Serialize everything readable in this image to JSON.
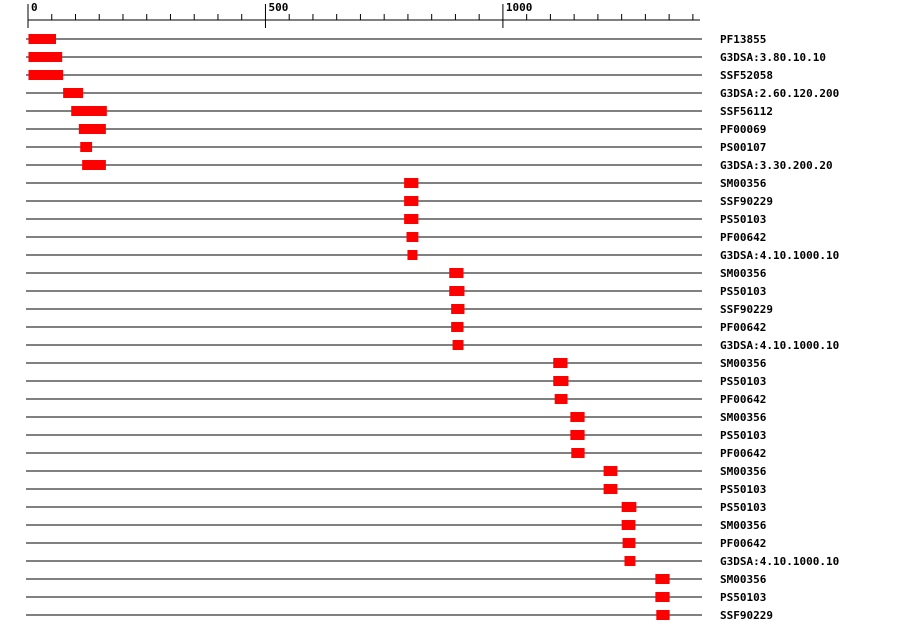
{
  "chart_data": {
    "type": "domains",
    "xlim": [
      0,
      1415
    ],
    "xticks": [
      0,
      500,
      1000
    ],
    "minor_xticks": [
      50,
      100,
      150,
      200,
      250,
      300,
      350,
      400,
      450,
      550,
      600,
      650,
      700,
      750,
      800,
      850,
      900,
      950,
      1050,
      1100,
      1150,
      1200,
      1250,
      1300,
      1350,
      1400
    ],
    "color": "#ff0000",
    "rows": [
      {
        "label": "PF13855",
        "start": 1,
        "end": 59
      },
      {
        "label": "G3DSA:3.80.10.10",
        "start": 1,
        "end": 72
      },
      {
        "label": "SSF52058",
        "start": 1,
        "end": 74
      },
      {
        "label": "G3DSA:2.60.120.200",
        "start": 74,
        "end": 116
      },
      {
        "label": "SSF56112",
        "start": 91,
        "end": 166
      },
      {
        "label": "PF00069",
        "start": 107,
        "end": 164
      },
      {
        "label": "PS00107",
        "start": 110,
        "end": 135
      },
      {
        "label": "G3DSA:3.30.200.20",
        "start": 114,
        "end": 164
      },
      {
        "label": "SM00356",
        "start": 792,
        "end": 822
      },
      {
        "label": "SSF90229",
        "start": 792,
        "end": 822
      },
      {
        "label": "PS50103",
        "start": 792,
        "end": 822
      },
      {
        "label": "PF00642",
        "start": 797,
        "end": 822
      },
      {
        "label": "G3DSA:4.10.1000.10",
        "start": 799,
        "end": 820
      },
      {
        "label": "SM00356",
        "start": 887,
        "end": 917
      },
      {
        "label": "PS50103",
        "start": 887,
        "end": 919
      },
      {
        "label": "SSF90229",
        "start": 891,
        "end": 919
      },
      {
        "label": "PF00642",
        "start": 891,
        "end": 917
      },
      {
        "label": "G3DSA:4.10.1000.10",
        "start": 894,
        "end": 917
      },
      {
        "label": "SM00356",
        "start": 1106,
        "end": 1136
      },
      {
        "label": "PS50103",
        "start": 1106,
        "end": 1138
      },
      {
        "label": "PF00642",
        "start": 1109,
        "end": 1136
      },
      {
        "label": "SM00356",
        "start": 1142,
        "end": 1172
      },
      {
        "label": "PS50103",
        "start": 1142,
        "end": 1172
      },
      {
        "label": "PF00642",
        "start": 1144,
        "end": 1172
      },
      {
        "label": "SM00356",
        "start": 1212,
        "end": 1241
      },
      {
        "label": "PS50103",
        "start": 1212,
        "end": 1241
      },
      {
        "label": "PS50103",
        "start": 1250,
        "end": 1281
      },
      {
        "label": "SM00356",
        "start": 1250,
        "end": 1279
      },
      {
        "label": "PF00642",
        "start": 1252,
        "end": 1279
      },
      {
        "label": "G3DSA:4.10.1000.10",
        "start": 1256,
        "end": 1279
      },
      {
        "label": "SM00356",
        "start": 1321,
        "end": 1351
      },
      {
        "label": "PS50103",
        "start": 1321,
        "end": 1351
      },
      {
        "label": "SSF90229",
        "start": 1323,
        "end": 1351
      }
    ]
  }
}
